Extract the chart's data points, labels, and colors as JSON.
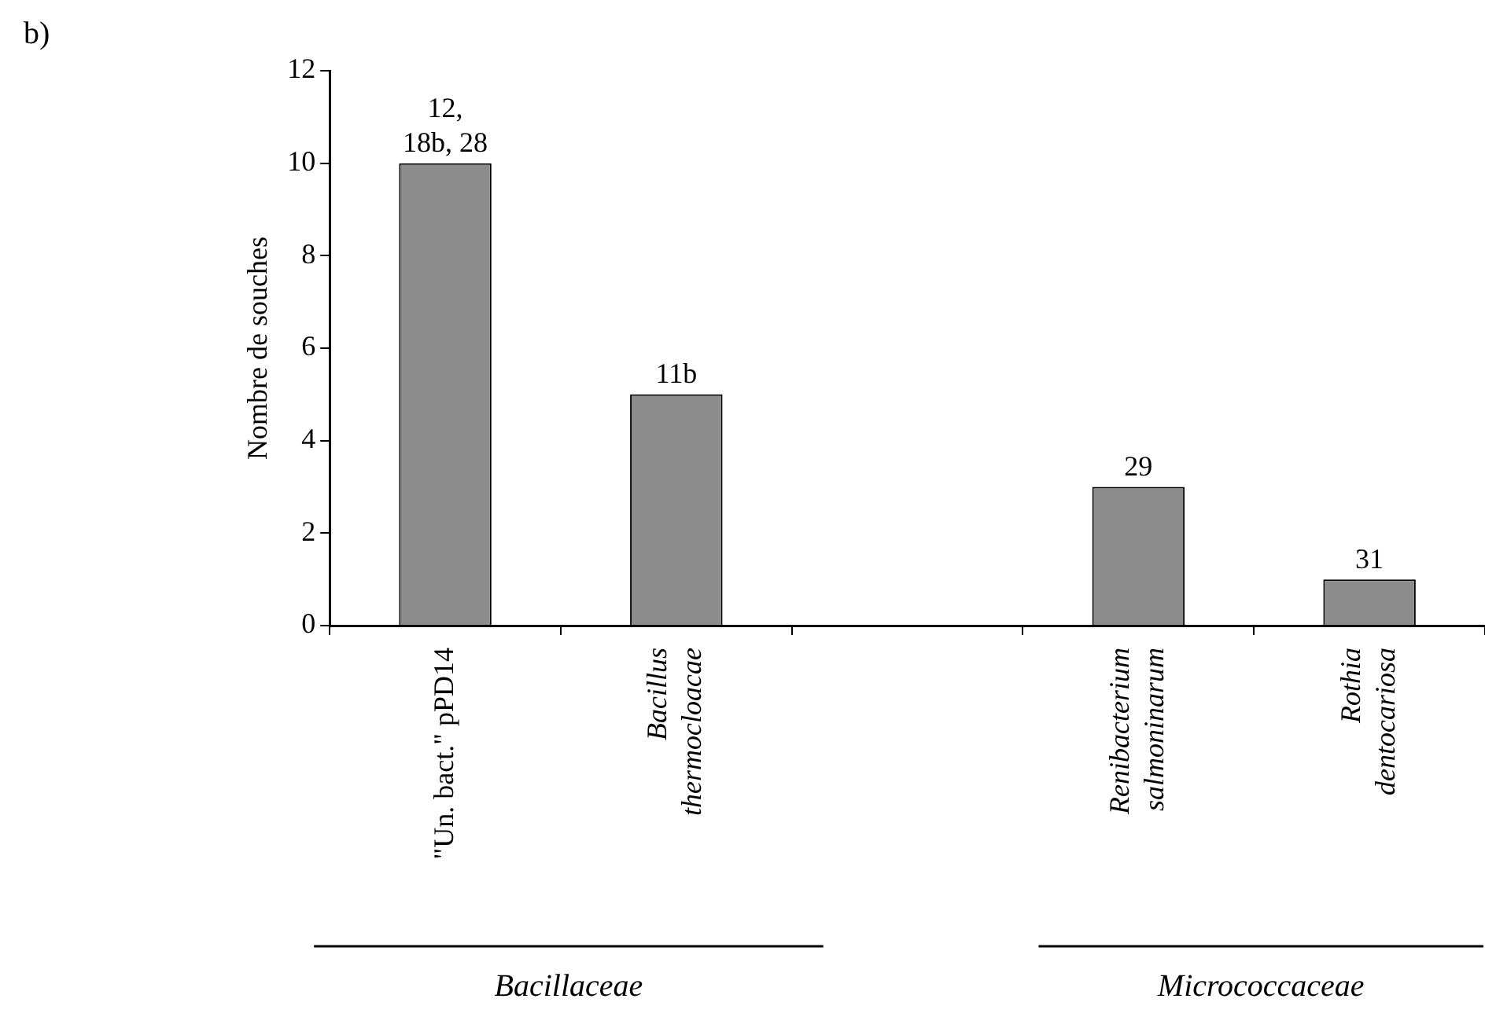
{
  "chart_data": {
    "type": "bar",
    "ylabel": "Nombre de souches",
    "categories": [
      "\"Un. bact.\" pPD14",
      "Bacillus thermocloacae",
      null,
      "Renibacterium salmoninarum",
      "Rothia dentocariosa"
    ],
    "values": [
      10,
      5,
      null,
      3,
      1
    ],
    "color": "#8c8c8c",
    "ylim": [
      0,
      12
    ],
    "yticks": [
      0,
      2,
      4,
      6,
      8,
      10,
      12
    ],
    "grid": false,
    "legend": false,
    "annotations": [
      "b)",
      "Bacillaceae",
      "Micrococcaceae",
      {
        "text": "12, 18b, 28",
        "x": "\"Un. bact.\" pPD14",
        "y": 10
      },
      {
        "text": "11b",
        "x": "Bacillus thermocloacae",
        "y": 5
      },
      {
        "text": "29",
        "x": "Renibacterium salmoninarum",
        "y": 3
      },
      {
        "text": "31",
        "x": "Rothia dentocariosa",
        "y": 1
      }
    ]
  }
}
